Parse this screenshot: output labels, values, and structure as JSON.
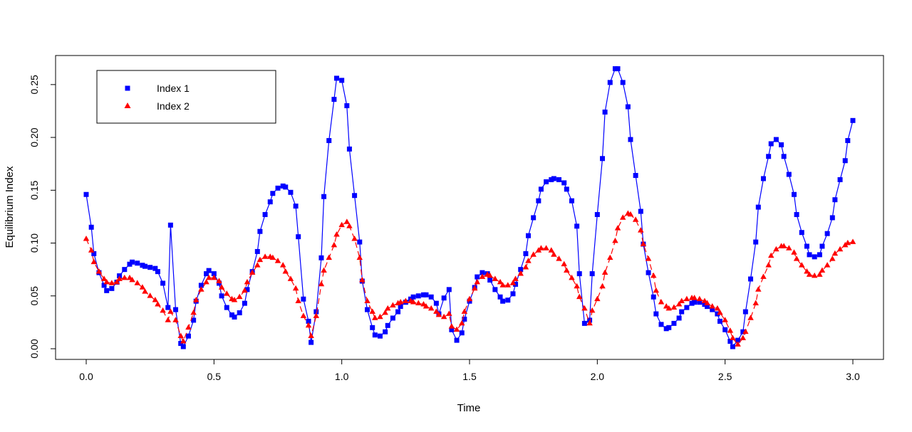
{
  "chart_data": {
    "type": "line",
    "title": "",
    "xlabel": "Time",
    "ylabel": "Equilibrium Index",
    "xlim": [
      0,
      3
    ],
    "ylim": [
      0,
      0.26
    ],
    "xticks": [
      0.0,
      0.5,
      1.0,
      1.5,
      2.0,
      2.5,
      3.0
    ],
    "xtick_labels": [
      "0.0",
      "0.5",
      "1.0",
      "1.5",
      "2.0",
      "2.5",
      "3.0"
    ],
    "yticks": [
      0.0,
      0.05,
      0.1,
      0.15,
      0.2,
      0.25
    ],
    "ytick_labels": [
      "0.00",
      "0.05",
      "0.10",
      "0.15",
      "0.20",
      "0.25"
    ],
    "grid": false,
    "legend_position": "top-left",
    "series": [
      {
        "name": "Index 1",
        "color": "#0000ff",
        "marker": "square",
        "line": "solid",
        "x": [
          0.0,
          0.02,
          0.03,
          0.05,
          0.07,
          0.08,
          0.1,
          0.12,
          0.13,
          0.15,
          0.17,
          0.18,
          0.2,
          0.22,
          0.23,
          0.25,
          0.27,
          0.28,
          0.3,
          0.32,
          0.33,
          0.35,
          0.37,
          0.38,
          0.4,
          0.42,
          0.43,
          0.45,
          0.47,
          0.48,
          0.5,
          0.52,
          0.53,
          0.55,
          0.57,
          0.58,
          0.6,
          0.62,
          0.63,
          0.65,
          0.67,
          0.68,
          0.7,
          0.72,
          0.73,
          0.75,
          0.77,
          0.78,
          0.8,
          0.82,
          0.83,
          0.85,
          0.87,
          0.88,
          0.9,
          0.92,
          0.93,
          0.95,
          0.97,
          0.98,
          1.0,
          1.02,
          1.03,
          1.05,
          1.07,
          1.08,
          1.1,
          1.12,
          1.13,
          1.15,
          1.17,
          1.18,
          1.2,
          1.22,
          1.23,
          1.25,
          1.27,
          1.28,
          1.3,
          1.32,
          1.33,
          1.35,
          1.37,
          1.38,
          1.4,
          1.42,
          1.43,
          1.45,
          1.47,
          1.48,
          1.5,
          1.52,
          1.53,
          1.55,
          1.57,
          1.58,
          1.6,
          1.62,
          1.63,
          1.65,
          1.67,
          1.68,
          1.7,
          1.72,
          1.73,
          1.75,
          1.77,
          1.78,
          1.8,
          1.82,
          1.83,
          1.85,
          1.87,
          1.88,
          1.9,
          1.92,
          1.93,
          1.95,
          1.97,
          1.98,
          2.0,
          2.02,
          2.03,
          2.05,
          2.07,
          2.08,
          2.1,
          2.12,
          2.13,
          2.15,
          2.17,
          2.18,
          2.2,
          2.22,
          2.23,
          2.25,
          2.27,
          2.28,
          2.3,
          2.32,
          2.33,
          2.35,
          2.37,
          2.38,
          2.4,
          2.42,
          2.43,
          2.45,
          2.47,
          2.48,
          2.5,
          2.52,
          2.53,
          2.55,
          2.57,
          2.58,
          2.6,
          2.62,
          2.63,
          2.65,
          2.67,
          2.68,
          2.7,
          2.72,
          2.73,
          2.75,
          2.77,
          2.78,
          2.8,
          2.82,
          2.83,
          2.85,
          2.87,
          2.88,
          2.9,
          2.92,
          2.93,
          2.95,
          2.97,
          2.98,
          3.0
        ],
        "y": [
          0.146,
          0.115,
          0.09,
          0.072,
          0.06,
          0.055,
          0.057,
          0.063,
          0.069,
          0.075,
          0.08,
          0.082,
          0.081,
          0.079,
          0.078,
          0.077,
          0.076,
          0.073,
          0.062,
          0.039,
          0.117,
          0.037,
          0.005,
          0.002,
          0.012,
          0.027,
          0.045,
          0.06,
          0.071,
          0.074,
          0.071,
          0.062,
          0.05,
          0.039,
          0.032,
          0.03,
          0.034,
          0.043,
          0.056,
          0.073,
          0.092,
          0.111,
          0.127,
          0.139,
          0.147,
          0.152,
          0.154,
          0.153,
          0.148,
          0.135,
          0.106,
          0.047,
          0.026,
          0.006,
          0.035,
          0.086,
          0.144,
          0.197,
          0.236,
          0.256,
          0.254,
          0.23,
          0.189,
          0.145,
          0.101,
          0.064,
          0.037,
          0.02,
          0.013,
          0.012,
          0.016,
          0.022,
          0.029,
          0.035,
          0.04,
          0.044,
          0.047,
          0.049,
          0.05,
          0.051,
          0.051,
          0.049,
          0.043,
          0.033,
          0.048,
          0.056,
          0.018,
          0.008,
          0.015,
          0.028,
          0.045,
          0.058,
          0.068,
          0.072,
          0.071,
          0.065,
          0.056,
          0.049,
          0.045,
          0.046,
          0.052,
          0.061,
          0.075,
          0.09,
          0.107,
          0.124,
          0.14,
          0.151,
          0.158,
          0.16,
          0.161,
          0.16,
          0.157,
          0.151,
          0.14,
          0.116,
          0.071,
          0.024,
          0.027,
          0.071,
          0.127,
          0.18,
          0.224,
          0.252,
          0.265,
          0.265,
          0.252,
          0.229,
          0.198,
          0.164,
          0.13,
          0.099,
          0.072,
          0.049,
          0.033,
          0.023,
          0.019,
          0.02,
          0.024,
          0.029,
          0.035,
          0.039,
          0.043,
          0.044,
          0.044,
          0.042,
          0.04,
          0.037,
          0.033,
          0.026,
          0.018,
          0.007,
          0.002,
          0.008,
          0.016,
          0.035,
          0.066,
          0.101,
          0.134,
          0.161,
          0.182,
          0.194,
          0.198,
          0.193,
          0.182,
          0.165,
          0.146,
          0.127,
          0.11,
          0.097,
          0.089,
          0.087,
          0.089,
          0.097,
          0.109,
          0.124,
          0.141,
          0.16,
          0.178,
          0.197,
          0.216
        ]
      },
      {
        "name": "Index 2",
        "color": "#ff0000",
        "marker": "triangle",
        "line": "dashed",
        "x": [
          0.0,
          0.02,
          0.03,
          0.05,
          0.07,
          0.08,
          0.1,
          0.12,
          0.13,
          0.15,
          0.17,
          0.18,
          0.2,
          0.22,
          0.23,
          0.25,
          0.27,
          0.28,
          0.3,
          0.32,
          0.33,
          0.35,
          0.37,
          0.38,
          0.4,
          0.42,
          0.43,
          0.45,
          0.47,
          0.48,
          0.5,
          0.52,
          0.53,
          0.55,
          0.57,
          0.58,
          0.6,
          0.62,
          0.63,
          0.65,
          0.67,
          0.68,
          0.7,
          0.72,
          0.73,
          0.75,
          0.77,
          0.78,
          0.8,
          0.82,
          0.83,
          0.85,
          0.87,
          0.88,
          0.9,
          0.92,
          0.93,
          0.95,
          0.97,
          0.98,
          1.0,
          1.02,
          1.03,
          1.05,
          1.07,
          1.08,
          1.1,
          1.12,
          1.13,
          1.15,
          1.17,
          1.18,
          1.2,
          1.22,
          1.23,
          1.25,
          1.27,
          1.28,
          1.3,
          1.32,
          1.33,
          1.35,
          1.37,
          1.38,
          1.4,
          1.42,
          1.43,
          1.45,
          1.47,
          1.48,
          1.5,
          1.52,
          1.53,
          1.55,
          1.57,
          1.58,
          1.6,
          1.62,
          1.63,
          1.65,
          1.67,
          1.68,
          1.7,
          1.72,
          1.73,
          1.75,
          1.77,
          1.78,
          1.8,
          1.82,
          1.83,
          1.85,
          1.87,
          1.88,
          1.9,
          1.92,
          1.93,
          1.95,
          1.97,
          1.98,
          2.0,
          2.02,
          2.03,
          2.05,
          2.07,
          2.08,
          2.1,
          2.12,
          2.13,
          2.15,
          2.17,
          2.18,
          2.2,
          2.22,
          2.23,
          2.25,
          2.27,
          2.28,
          2.3,
          2.32,
          2.33,
          2.35,
          2.37,
          2.38,
          2.4,
          2.42,
          2.43,
          2.45,
          2.47,
          2.48,
          2.5,
          2.52,
          2.53,
          2.55,
          2.57,
          2.58,
          2.6,
          2.62,
          2.63,
          2.65,
          2.67,
          2.68,
          2.7,
          2.72,
          2.73,
          2.75,
          2.77,
          2.78,
          2.8,
          2.82,
          2.83,
          2.85,
          2.87,
          2.88,
          2.9,
          2.92,
          2.93,
          2.95,
          2.97,
          2.98,
          3.0
        ],
        "y": [
          0.104,
          0.093,
          0.082,
          0.073,
          0.066,
          0.063,
          0.062,
          0.063,
          0.066,
          0.067,
          0.067,
          0.065,
          0.062,
          0.058,
          0.054,
          0.05,
          0.046,
          0.042,
          0.036,
          0.027,
          0.035,
          0.027,
          0.012,
          0.007,
          0.02,
          0.034,
          0.046,
          0.056,
          0.063,
          0.067,
          0.067,
          0.064,
          0.058,
          0.052,
          0.047,
          0.046,
          0.049,
          0.055,
          0.063,
          0.072,
          0.079,
          0.084,
          0.087,
          0.087,
          0.086,
          0.083,
          0.079,
          0.073,
          0.066,
          0.057,
          0.045,
          0.031,
          0.022,
          0.012,
          0.031,
          0.061,
          0.074,
          0.086,
          0.098,
          0.108,
          0.117,
          0.12,
          0.116,
          0.104,
          0.086,
          0.065,
          0.045,
          0.035,
          0.029,
          0.03,
          0.034,
          0.038,
          0.041,
          0.043,
          0.044,
          0.045,
          0.045,
          0.044,
          0.043,
          0.042,
          0.04,
          0.038,
          0.035,
          0.032,
          0.03,
          0.033,
          0.021,
          0.018,
          0.024,
          0.035,
          0.047,
          0.057,
          0.063,
          0.068,
          0.07,
          0.069,
          0.066,
          0.063,
          0.06,
          0.06,
          0.062,
          0.066,
          0.071,
          0.077,
          0.083,
          0.089,
          0.093,
          0.095,
          0.095,
          0.093,
          0.089,
          0.085,
          0.08,
          0.074,
          0.067,
          0.059,
          0.049,
          0.038,
          0.024,
          0.036,
          0.047,
          0.059,
          0.072,
          0.086,
          0.102,
          0.114,
          0.124,
          0.128,
          0.127,
          0.122,
          0.112,
          0.099,
          0.085,
          0.069,
          0.055,
          0.044,
          0.04,
          0.038,
          0.039,
          0.042,
          0.045,
          0.047,
          0.048,
          0.048,
          0.047,
          0.045,
          0.043,
          0.04,
          0.038,
          0.034,
          0.027,
          0.017,
          0.01,
          0.004,
          0.01,
          0.016,
          0.029,
          0.043,
          0.056,
          0.068,
          0.079,
          0.088,
          0.094,
          0.097,
          0.097,
          0.095,
          0.091,
          0.085,
          0.079,
          0.073,
          0.07,
          0.069,
          0.07,
          0.074,
          0.079,
          0.085,
          0.09,
          0.094,
          0.098,
          0.1,
          0.101
        ]
      }
    ]
  }
}
